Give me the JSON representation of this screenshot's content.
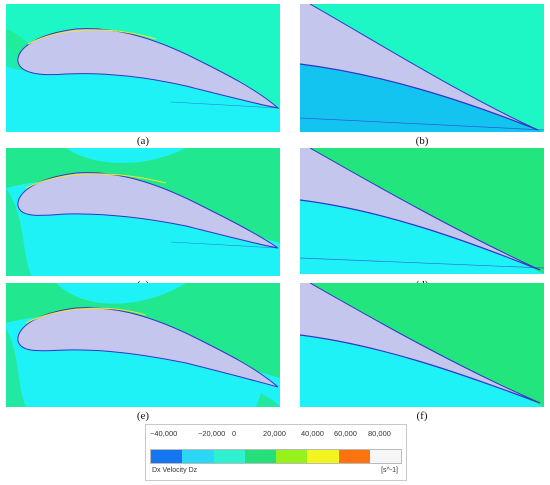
{
  "panels": [
    {
      "id": "a",
      "caption": "(a)",
      "view": "full",
      "wake": true
    },
    {
      "id": "b",
      "caption": "(b)",
      "view": "zoom",
      "wake": true
    },
    {
      "id": "c",
      "caption": "(c)",
      "view": "full",
      "wake": true
    },
    {
      "id": "d",
      "caption": "(d)",
      "view": "zoom",
      "wake": true
    },
    {
      "id": "e",
      "caption": "(e)",
      "view": "full",
      "wake": false
    },
    {
      "id": "f",
      "caption": "(f)",
      "view": "zoom",
      "wake": false
    }
  ],
  "legend": {
    "ticks": [
      "−40,000",
      "−20,000",
      "0",
      "20,000",
      "40,000",
      "60,000",
      "80,000"
    ],
    "variable": "Dx Velocity Dz",
    "unit": "[s^-1]",
    "colors": [
      "#1676f2",
      "#2ad7f5",
      "#2ef1cf",
      "#26df7b",
      "#96f21a",
      "#f2f51e",
      "#fb7410",
      "#f6f6f6"
    ]
  },
  "colors": {
    "far_field": "#1df7c6",
    "cyan_region": "#1ff2f7",
    "green_region": "#22e67d",
    "blue_region": "#14c4f0",
    "airfoil": "#c4c6ee",
    "outline": "#3434c8"
  }
}
